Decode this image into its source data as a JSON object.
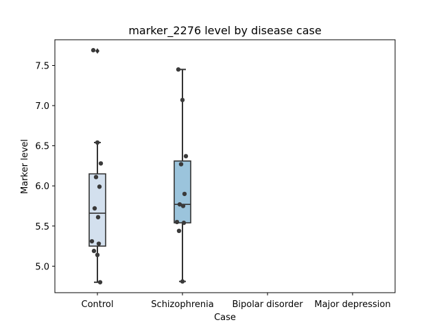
{
  "chart_data": {
    "type": "box",
    "title": "marker_2276 level by disease case",
    "xlabel": "Case",
    "ylabel": "Marker level",
    "categories": [
      "Control",
      "Schizophrenia",
      "Bipolar disorder",
      "Major depression"
    ],
    "ylim": [
      4.67,
      7.82
    ],
    "yticks": [
      5.0,
      5.5,
      6.0,
      6.5,
      7.0,
      7.5
    ],
    "ytick_labels": [
      "5.0",
      "5.5",
      "6.0",
      "6.5",
      "7.0",
      "7.5"
    ],
    "grid": false,
    "boxes": [
      {
        "category": "Control",
        "whisker_low": 4.8,
        "q1": 5.25,
        "median": 5.66,
        "q3": 6.15,
        "whisker_high": 6.54,
        "outliers": [
          7.68
        ],
        "color": "#d3e0ee"
      },
      {
        "category": "Schizophrenia",
        "whisker_low": 4.81,
        "q1": 5.54,
        "median": 5.77,
        "q3": 6.31,
        "whisker_high": 7.45,
        "outliers": [],
        "color": "#9bc4dc"
      },
      {
        "category": "Bipolar disorder",
        "whisker_low": null,
        "q1": null,
        "median": null,
        "q3": null,
        "whisker_high": null,
        "outliers": [],
        "color": "#6fa8d0"
      },
      {
        "category": "Major depression",
        "whisker_low": null,
        "q1": null,
        "median": null,
        "q3": null,
        "whisker_high": null,
        "outliers": [],
        "color": "#3f7fb5"
      }
    ],
    "points": [
      {
        "category": "Control",
        "values": [
          7.69,
          6.54,
          6.28,
          6.11,
          5.99,
          5.72,
          5.61,
          5.31,
          5.28,
          5.19,
          5.14,
          4.8
        ]
      },
      {
        "category": "Schizophrenia",
        "values": [
          7.45,
          7.07,
          6.37,
          6.27,
          5.9,
          5.77,
          5.75,
          5.55,
          5.54,
          5.44,
          4.81
        ]
      }
    ],
    "colors": {
      "line": "#333333",
      "point": "#3a3a3a"
    }
  }
}
